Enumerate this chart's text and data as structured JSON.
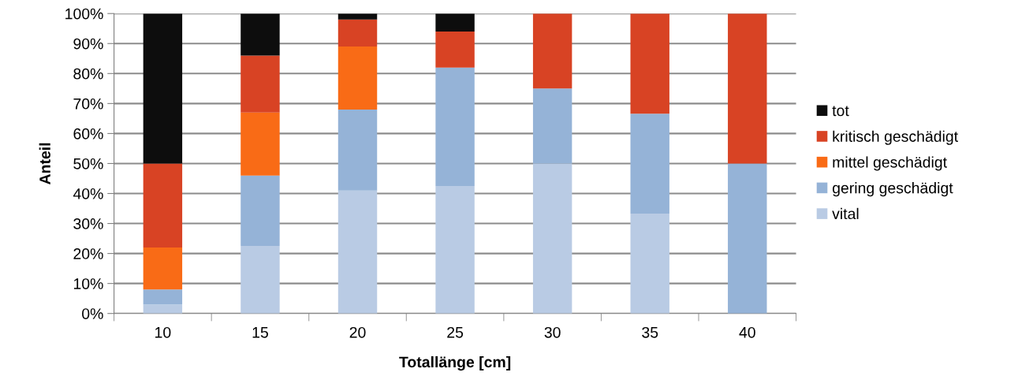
{
  "chart_data": {
    "type": "bar",
    "stacked": true,
    "xlabel": "Totallänge [cm]",
    "ylabel": "Anteil",
    "categories": [
      "10",
      "15",
      "20",
      "25",
      "30",
      "35",
      "40"
    ],
    "series": [
      {
        "name": "vital",
        "color": "#b9cbe4",
        "values": [
          3,
          22.5,
          41,
          42.5,
          50,
          33.3,
          0
        ]
      },
      {
        "name": "gering geschädigt",
        "color": "#95b3d7",
        "values": [
          5,
          23.5,
          27,
          39.5,
          25,
          33.3,
          50
        ]
      },
      {
        "name": "mittel geschädigt",
        "color": "#f96b16",
        "values": [
          14,
          21,
          21,
          0,
          0,
          0,
          0
        ]
      },
      {
        "name": "kritisch geschädigt",
        "color": "#d84324",
        "values": [
          28,
          19,
          9,
          12,
          25,
          33.4,
          50
        ]
      },
      {
        "name": "tot",
        "color": "#0d0d0d",
        "values": [
          50,
          14,
          2,
          6,
          0,
          0,
          0
        ]
      }
    ],
    "ylim": [
      0,
      100
    ],
    "yticks": [
      {
        "value": 0,
        "label": "0%"
      },
      {
        "value": 10,
        "label": "10%"
      },
      {
        "value": 20,
        "label": "20%"
      },
      {
        "value": 30,
        "label": "30%"
      },
      {
        "value": 40,
        "label": "40%"
      },
      {
        "value": 50,
        "label": "50%"
      },
      {
        "value": 60,
        "label": "60%"
      },
      {
        "value": 70,
        "label": "70%"
      },
      {
        "value": 80,
        "label": "80%"
      },
      {
        "value": 90,
        "label": "90%"
      },
      {
        "value": 100,
        "label": "100%"
      }
    ],
    "grid": "y",
    "legend": "right"
  }
}
